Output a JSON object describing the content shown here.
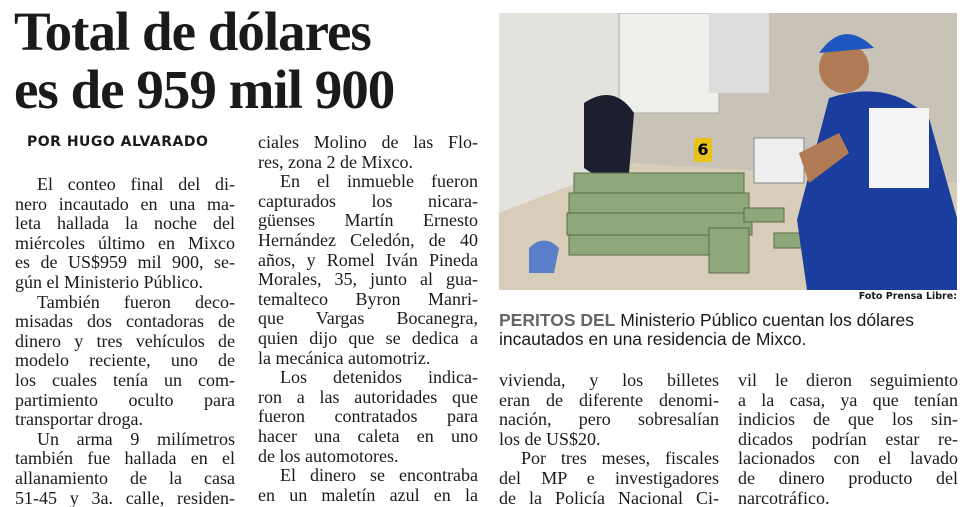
{
  "headline": [
    "Total de dólares",
    "es de 959 mil 900"
  ],
  "byline": "POR HUGO ALVARADO",
  "columns": [
    [
      [
        "El conteo final del di-",
        "nero incautado en una ma-",
        "leta hallada la noche del",
        "miércoles último en Mixco",
        "es de US$959 mil 900, se-",
        "gún el Ministerio Público."
      ],
      [
        "También fueron deco-",
        "misadas dos contadoras de",
        "dinero y tres vehículos de",
        "modelo reciente, uno de",
        "los cuales tenía un com-",
        "partimiento oculto para",
        "transportar droga."
      ],
      [
        "Un arma 9 milímetros",
        "también fue hallada en el",
        "allanamiento de la casa",
        "51-45 y 3a. calle, residen-"
      ]
    ],
    [
      [
        "ciales Molino de las Flo-",
        "res, zona 2 de Mixco."
      ],
      [
        "En el inmueble fueron",
        "capturados los nicara-",
        "güenses Martín Ernesto",
        "Hernández Celedón, de 40",
        "años, y Romel Iván Pineda",
        "Morales, 35, junto al gua-",
        "temalteco Byron Manri-",
        "que Vargas Bocanegra,",
        "quien dijo que se dedica a",
        "la mecánica automotriz."
      ],
      [
        "Los detenidos indica-",
        "ron a las autoridades que",
        "fueron contratados para",
        "hacer una caleta en uno",
        "de los automotores."
      ],
      [
        "El dinero se encontraba",
        "en un maletín azul en la"
      ]
    ],
    [
      [
        "vivienda, y los billetes",
        "eran de diferente denomi-",
        "nación, pero sobresalían",
        "los de US$20."
      ],
      [
        "Por tres meses, fiscales",
        "del MP e investigadores",
        "de la Policía Nacional Ci-"
      ]
    ],
    [
      [
        "vil le dieron seguimiento",
        "a la casa, ya que tenían",
        "indicios de que los sin-",
        "dicados podrían estar re-",
        "lacionados con el lavado",
        "de dinero producto del",
        "narcotráfico."
      ]
    ]
  ],
  "photo": {
    "evidence_marker": "6",
    "credit": "Foto Prensa Libre:"
  },
  "caption": {
    "lead": "PERITOS DEL",
    "lines": [
      "Ministerio Público cuentan los dólares",
      "incautados en una residencia de Mixco."
    ]
  }
}
